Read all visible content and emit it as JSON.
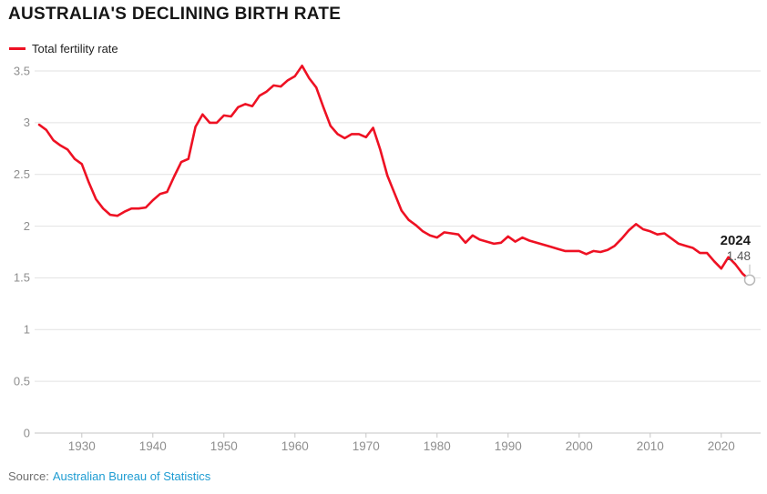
{
  "header": {
    "title": "AUSTRALIA'S DECLINING BIRTH RATE"
  },
  "legend": {
    "label": "Total fertility rate"
  },
  "annotation": {
    "year": "2024",
    "value": "1.48"
  },
  "source": {
    "prefix": "Source:",
    "link_text": "Australian Bureau of Statistics"
  },
  "colors": {
    "line": "#ee1123",
    "grid": "#e2e2e2",
    "axis": "#c6c6c6",
    "tick_label": "#8e8e8e",
    "title": "#161616",
    "marker_stroke": "#b9b9b9",
    "link": "#1e9cd2"
  },
  "chart_data": {
    "type": "line",
    "title": "AUSTRALIA'S DECLINING BIRTH RATE",
    "xlabel": "",
    "ylabel": "",
    "ylim": [
      0,
      3.5
    ],
    "xlim": [
      1924,
      2024
    ],
    "grid": "horizontal",
    "legend_position": "top-left",
    "x_ticks": [
      1930,
      1940,
      1950,
      1960,
      1970,
      1980,
      1990,
      2000,
      2010,
      2020
    ],
    "y_ticks": [
      0,
      0.5,
      1,
      1.5,
      2,
      2.5,
      3,
      3.5
    ],
    "x": [
      1924,
      1925,
      1926,
      1927,
      1928,
      1929,
      1930,
      1931,
      1932,
      1933,
      1934,
      1935,
      1936,
      1937,
      1938,
      1939,
      1940,
      1941,
      1942,
      1943,
      1944,
      1945,
      1946,
      1947,
      1948,
      1949,
      1950,
      1951,
      1952,
      1953,
      1954,
      1955,
      1956,
      1957,
      1958,
      1959,
      1960,
      1961,
      1962,
      1963,
      1964,
      1965,
      1966,
      1967,
      1968,
      1969,
      1970,
      1971,
      1972,
      1973,
      1974,
      1975,
      1976,
      1977,
      1978,
      1979,
      1980,
      1981,
      1982,
      1983,
      1984,
      1985,
      1986,
      1987,
      1988,
      1989,
      1990,
      1991,
      1992,
      1993,
      1994,
      1995,
      1996,
      1997,
      1998,
      1999,
      2000,
      2001,
      2002,
      2003,
      2004,
      2005,
      2006,
      2007,
      2008,
      2009,
      2010,
      2011,
      2012,
      2013,
      2014,
      2015,
      2016,
      2017,
      2018,
      2019,
      2020,
      2021,
      2022,
      2023,
      2024
    ],
    "series": [
      {
        "name": "Total fertility rate",
        "color": "#ee1123",
        "values": [
          2.98,
          2.93,
          2.83,
          2.78,
          2.74,
          2.65,
          2.6,
          2.42,
          2.26,
          2.17,
          2.11,
          2.1,
          2.14,
          2.17,
          2.17,
          2.18,
          2.25,
          2.31,
          2.33,
          2.48,
          2.62,
          2.65,
          2.96,
          3.08,
          3.0,
          3.0,
          3.07,
          3.06,
          3.15,
          3.18,
          3.16,
          3.26,
          3.3,
          3.36,
          3.35,
          3.41,
          3.45,
          3.55,
          3.43,
          3.34,
          3.15,
          2.97,
          2.89,
          2.85,
          2.89,
          2.89,
          2.86,
          2.95,
          2.74,
          2.49,
          2.32,
          2.15,
          2.06,
          2.01,
          1.95,
          1.91,
          1.89,
          1.94,
          1.93,
          1.92,
          1.84,
          1.91,
          1.87,
          1.85,
          1.83,
          1.84,
          1.9,
          1.85,
          1.89,
          1.86,
          1.84,
          1.82,
          1.8,
          1.78,
          1.76,
          1.76,
          1.76,
          1.73,
          1.76,
          1.75,
          1.77,
          1.81,
          1.88,
          1.96,
          2.02,
          1.97,
          1.95,
          1.92,
          1.93,
          1.88,
          1.83,
          1.81,
          1.79,
          1.74,
          1.74,
          1.66,
          1.59,
          1.7,
          1.63,
          1.54,
          1.48
        ]
      }
    ],
    "end_annotation": {
      "label": "2024",
      "value": "1.48"
    }
  }
}
